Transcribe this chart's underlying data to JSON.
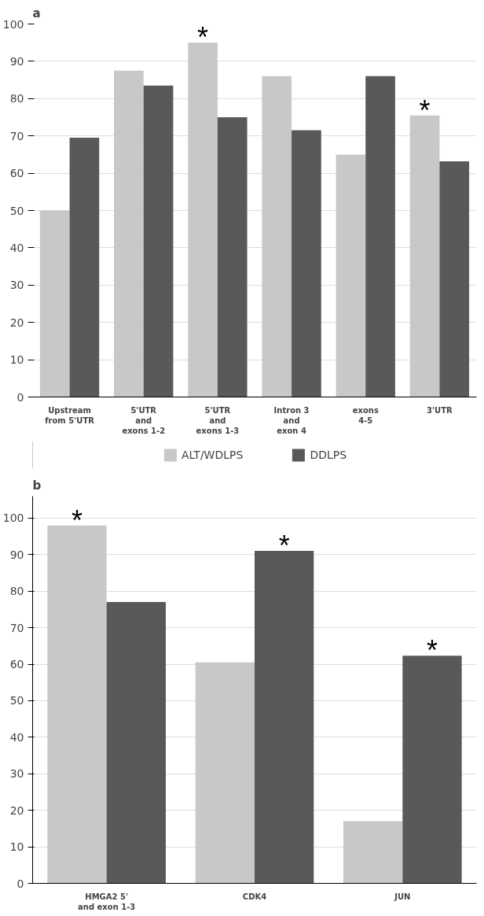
{
  "chart_data": [
    {
      "type": "bar",
      "title": "a",
      "categories": [
        "Upstream\nfrom 5'UTR",
        "5'UTR\nand\nexons 1-2",
        "5'UTR\nand\nexons 1-3",
        "Intron 3\nand\nexon 4",
        "exons\n4-5",
        "3'UTR"
      ],
      "series": [
        {
          "name": "ALT/WDLPS",
          "color": "#c8c8c8",
          "values": [
            50,
            87.5,
            95,
            86,
            65,
            75.5
          ]
        },
        {
          "name": "DDLPS",
          "color": "#595959",
          "values": [
            69.5,
            83.5,
            75,
            71.5,
            86,
            63.2
          ]
        }
      ],
      "ylim": [
        0,
        100
      ],
      "yticks": [
        0,
        10,
        20,
        30,
        40,
        50,
        60,
        70,
        80,
        90,
        100
      ],
      "grid": "y",
      "legend": "bottom",
      "annotations": [
        {
          "text": "*",
          "x": "5'UTR\nand\nexons 1-3",
          "y": 95
        },
        {
          "text": "*",
          "x": "3'UTR",
          "y": 75.5
        }
      ]
    },
    {
      "type": "bar",
      "title": "b",
      "categories": [
        "HMGA2 5'\nand exon 1-3",
        "CDK4",
        "JUN"
      ],
      "series": [
        {
          "color": "#c8c8c8",
          "values": [
            98,
            60.5,
            17
          ]
        },
        {
          "color": "#595959",
          "values": [
            77,
            91,
            62.3
          ]
        }
      ],
      "ylim": [
        0,
        106
      ],
      "yticks": [
        0,
        10,
        20,
        30,
        40,
        50,
        60,
        70,
        80,
        90,
        100
      ],
      "grid": "y",
      "legend": false,
      "annotations": [
        {
          "text": "*",
          "x": "HMGA2 5'\nand exon 1-3",
          "y": 98
        },
        {
          "text": "*",
          "x": "CDK4",
          "y": 91
        },
        {
          "text": "*",
          "x": "JUN",
          "y": 62.3
        }
      ]
    }
  ]
}
